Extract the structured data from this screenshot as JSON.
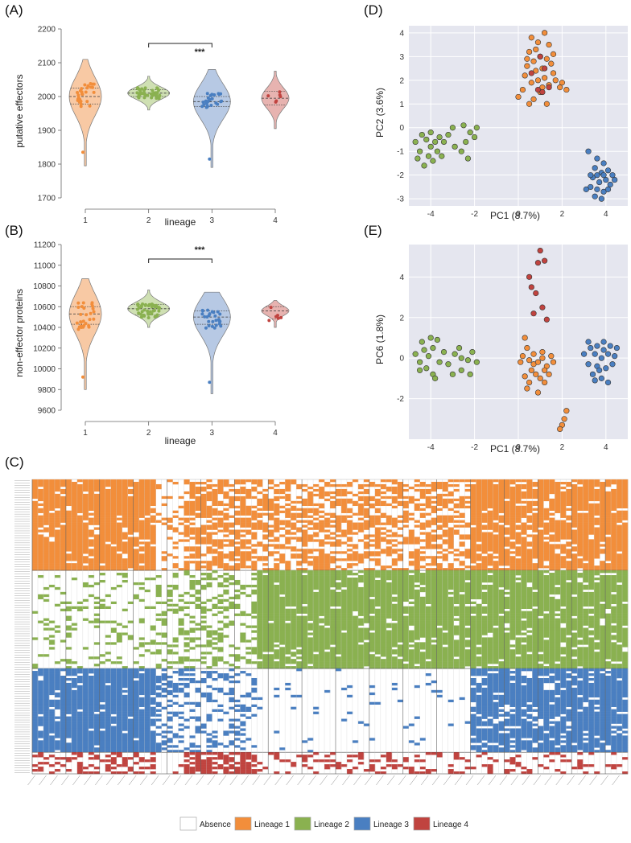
{
  "panels": {
    "A": {
      "label": "(A)",
      "ylabel": "putative effectors",
      "xlabel": "lineage",
      "significance": "***"
    },
    "B": {
      "label": "(B)",
      "ylabel": "non-effector proteins",
      "xlabel": "lineage",
      "significance": "***"
    },
    "C": {
      "label": "(C)"
    },
    "D": {
      "label": "(D)",
      "xlabel": "PC1 (8.7%)",
      "ylabel": "PC2 (3.6%)"
    },
    "E": {
      "label": "(E)",
      "xlabel": "PC1 (8.7%)",
      "ylabel": "PC6 (1.8%)"
    }
  },
  "legend": [
    {
      "label": "Absence",
      "color": "#ffffff"
    },
    {
      "label": "Lineage 1",
      "color": "#f28e3b"
    },
    {
      "label": "Lineage 2",
      "color": "#8ab150"
    },
    {
      "label": "Lineage 3",
      "color": "#4a7fc1"
    },
    {
      "label": "Lineage 4",
      "color": "#c0433f"
    }
  ],
  "colors": {
    "lineage1": "#f28e3b",
    "lineage2": "#8ab150",
    "lineage3": "#4a7fc1",
    "lineage4": "#c0433f",
    "violin1": "#f8c9a4",
    "violin2": "#cfe0b3",
    "violin3": "#b7c9e4",
    "violin4": "#e7b3b0",
    "pca_bg": "#e5e6ef"
  },
  "chart_data": [
    {
      "id": "A",
      "type": "violin",
      "title": "",
      "xlabel": "lineage",
      "ylabel": "putative effectors",
      "categories": [
        "1",
        "2",
        "3",
        "4"
      ],
      "ylim": [
        1700,
        2200
      ],
      "yticks": [
        "1700",
        "1800",
        "1900",
        "2000",
        "2100",
        "2200"
      ],
      "medians": [
        2000,
        2010,
        1985,
        1995
      ],
      "q1": [
        1978,
        2000,
        1970,
        1975
      ],
      "q3": [
        2025,
        2020,
        2000,
        2015
      ],
      "ranges": [
        [
          1795,
          2110
        ],
        [
          1960,
          2060
        ],
        [
          1790,
          2080
        ],
        [
          1905,
          2075
        ]
      ],
      "outliers": [
        [
          1835
        ],
        [],
        [
          1815
        ],
        []
      ],
      "significance": {
        "between": [
          "2",
          "3"
        ],
        "label": "***"
      }
    },
    {
      "id": "B",
      "type": "violin",
      "title": "",
      "xlabel": "lineage",
      "ylabel": "non-effector proteins",
      "categories": [
        "1",
        "2",
        "3",
        "4"
      ],
      "ylim": [
        9600,
        11200
      ],
      "yticks": [
        "9600",
        "9800",
        "10000",
        "10200",
        "10400",
        "10600",
        "10800",
        "11000",
        "11200"
      ],
      "medians": [
        10530,
        10580,
        10500,
        10560
      ],
      "q1": [
        10430,
        10520,
        10430,
        10480
      ],
      "q3": [
        10600,
        10620,
        10560,
        10600
      ],
      "ranges": [
        [
          9800,
          10870
        ],
        [
          10400,
          10760
        ],
        [
          9760,
          10740
        ],
        [
          10400,
          10660
        ]
      ],
      "outliers": [
        [
          9920
        ],
        [],
        [
          9870
        ],
        []
      ],
      "significance": {
        "between": [
          "2",
          "3"
        ],
        "label": "***"
      }
    },
    {
      "id": "D",
      "type": "scatter",
      "xlabel": "PC1 (8.7%)",
      "ylabel": "PC2 (3.6%)",
      "xlim": [
        -5,
        5
      ],
      "ylim": [
        -3.3,
        4.3
      ],
      "xticks": [
        "-4",
        "-2",
        "0",
        "2",
        "4"
      ],
      "yticks": [
        "-3",
        "-2",
        "-1",
        "0",
        "1",
        "2",
        "3",
        "4"
      ],
      "series": [
        {
          "name": "Lineage 1",
          "points": [
            [
              0.6,
              3.8
            ],
            [
              1.2,
              4.0
            ],
            [
              0.9,
              3.6
            ],
            [
              1.4,
              3.5
            ],
            [
              0.5,
              3.2
            ],
            [
              1.0,
              3.0
            ],
            [
              1.3,
              2.9
            ],
            [
              0.7,
              2.8
            ],
            [
              1.5,
              2.7
            ],
            [
              0.4,
              2.6
            ],
            [
              1.1,
              2.5
            ],
            [
              0.8,
              2.4
            ],
            [
              1.6,
              2.3
            ],
            [
              0.3,
              2.2
            ],
            [
              1.2,
              2.1
            ],
            [
              0.9,
              2.0
            ],
            [
              1.7,
              2.0
            ],
            [
              0.6,
              1.9
            ],
            [
              1.4,
              1.8
            ],
            [
              2.0,
              1.9
            ],
            [
              0.2,
              1.6
            ],
            [
              1.0,
              1.5
            ],
            [
              0.7,
              1.2
            ],
            [
              1.3,
              1.0
            ],
            [
              0.5,
              1.0
            ],
            [
              0.0,
              1.3
            ],
            [
              1.9,
              1.7
            ],
            [
              2.2,
              1.6
            ],
            [
              1.1,
              1.7
            ],
            [
              0.8,
              3.3
            ],
            [
              1.6,
              3.1
            ],
            [
              0.4,
              2.9
            ]
          ]
        },
        {
          "name": "Lineage 2",
          "points": [
            [
              -4.7,
              -0.6
            ],
            [
              -4.4,
              -0.3
            ],
            [
              -4.2,
              -0.5
            ],
            [
              -4.0,
              -0.8
            ],
            [
              -3.8,
              -0.6
            ],
            [
              -4.5,
              -1.0
            ],
            [
              -4.1,
              -1.2
            ],
            [
              -3.9,
              -1.4
            ],
            [
              -4.3,
              -1.6
            ],
            [
              -3.7,
              -1.0
            ],
            [
              -3.6,
              -0.4
            ],
            [
              -4.6,
              -1.3
            ],
            [
              -3.4,
              -0.6
            ],
            [
              -3.2,
              -0.3
            ],
            [
              -3.0,
              0.0
            ],
            [
              -2.9,
              -0.8
            ],
            [
              -2.6,
              -1.0
            ],
            [
              -2.4,
              -0.6
            ],
            [
              -2.2,
              -0.2
            ],
            [
              -2.0,
              -0.4
            ],
            [
              -2.5,
              0.1
            ],
            [
              -1.9,
              0.0
            ],
            [
              -2.3,
              -1.3
            ],
            [
              -4.0,
              -0.2
            ],
            [
              -3.5,
              -1.2
            ]
          ]
        },
        {
          "name": "Lineage 3",
          "points": [
            [
              3.2,
              -1.0
            ],
            [
              3.6,
              -1.3
            ],
            [
              3.9,
              -1.5
            ],
            [
              4.1,
              -1.8
            ],
            [
              3.5,
              -1.7
            ],
            [
              3.8,
              -1.9
            ],
            [
              4.3,
              -2.0
            ],
            [
              3.4,
              -2.1
            ],
            [
              3.7,
              -2.3
            ],
            [
              4.0,
              -2.2
            ],
            [
              3.3,
              -2.5
            ],
            [
              3.6,
              -2.6
            ],
            [
              4.2,
              -2.4
            ],
            [
              3.9,
              -2.7
            ],
            [
              3.5,
              -2.9
            ],
            [
              3.8,
              -3.0
            ],
            [
              4.4,
              -2.2
            ],
            [
              3.1,
              -2.6
            ],
            [
              3.6,
              -2.0
            ],
            [
              4.1,
              -2.6
            ],
            [
              3.3,
              -2.0
            ],
            [
              3.9,
              -2.0
            ]
          ]
        },
        {
          "name": "Lineage 4",
          "points": [
            [
              1.0,
              3.0
            ],
            [
              0.9,
              1.6
            ],
            [
              1.2,
              2.5
            ],
            [
              0.6,
              2.3
            ],
            [
              1.4,
              1.7
            ],
            [
              1.1,
              1.5
            ]
          ]
        }
      ]
    },
    {
      "id": "E",
      "type": "scatter",
      "xlabel": "PC1 (8.7%)",
      "ylabel": "PC6 (1.8%)",
      "xlim": [
        -5,
        5
      ],
      "ylim": [
        -4.0,
        5.6
      ],
      "xticks": [
        "-4",
        "-2",
        "0",
        "2",
        "4"
      ],
      "yticks": [
        "-2",
        "0",
        "2",
        "4"
      ],
      "series": [
        {
          "name": "Lineage 1",
          "points": [
            [
              0.3,
              1.0
            ],
            [
              0.4,
              0.5
            ],
            [
              0.2,
              0.1
            ],
            [
              0.5,
              -0.1
            ],
            [
              0.7,
              -0.3
            ],
            [
              0.9,
              -0.2
            ],
            [
              1.1,
              0.0
            ],
            [
              1.3,
              -0.4
            ],
            [
              0.6,
              -0.6
            ],
            [
              0.8,
              -0.8
            ],
            [
              1.0,
              -1.0
            ],
            [
              1.2,
              -1.2
            ],
            [
              0.4,
              -1.5
            ],
            [
              0.9,
              -1.7
            ],
            [
              1.4,
              -0.8
            ],
            [
              1.6,
              -0.2
            ],
            [
              0.1,
              -0.2
            ],
            [
              0.3,
              -0.9
            ],
            [
              1.1,
              0.3
            ],
            [
              2.2,
              -2.6
            ],
            [
              2.1,
              -3.0
            ],
            [
              2.0,
              -3.3
            ],
            [
              1.9,
              -3.5
            ],
            [
              0.7,
              0.2
            ],
            [
              1.5,
              0.1
            ],
            [
              0.5,
              -1.2
            ],
            [
              1.2,
              -0.6
            ]
          ]
        },
        {
          "name": "Lineage 2",
          "points": [
            [
              -4.7,
              0.2
            ],
            [
              -4.5,
              -0.2
            ],
            [
              -4.3,
              0.4
            ],
            [
              -4.1,
              0.1
            ],
            [
              -3.9,
              0.5
            ],
            [
              -3.7,
              0.9
            ],
            [
              -4.0,
              1.0
            ],
            [
              -4.4,
              0.8
            ],
            [
              -4.2,
              -0.5
            ],
            [
              -3.9,
              -0.8
            ],
            [
              -3.6,
              -0.2
            ],
            [
              -3.4,
              0.3
            ],
            [
              -3.2,
              -0.3
            ],
            [
              -2.9,
              0.2
            ],
            [
              -2.6,
              0.0
            ],
            [
              -2.3,
              -0.1
            ],
            [
              -2.1,
              0.3
            ],
            [
              -1.9,
              -0.2
            ],
            [
              -2.2,
              -0.8
            ],
            [
              -2.6,
              -0.6
            ],
            [
              -3.0,
              -0.8
            ],
            [
              -4.5,
              -0.6
            ],
            [
              -2.7,
              0.5
            ],
            [
              -3.8,
              -1.0
            ]
          ]
        },
        {
          "name": "Lineage 3",
          "points": [
            [
              3.0,
              0.2
            ],
            [
              3.3,
              0.5
            ],
            [
              3.6,
              0.6
            ],
            [
              3.9,
              0.8
            ],
            [
              4.2,
              0.6
            ],
            [
              3.5,
              0.2
            ],
            [
              3.8,
              0.0
            ],
            [
              4.1,
              0.2
            ],
            [
              4.4,
              0.1
            ],
            [
              3.2,
              -0.3
            ],
            [
              3.6,
              -0.4
            ],
            [
              4.0,
              -0.5
            ],
            [
              4.3,
              -0.3
            ],
            [
              3.4,
              -0.8
            ],
            [
              3.8,
              -1.0
            ],
            [
              4.1,
              -1.2
            ],
            [
              3.7,
              -0.6
            ],
            [
              3.9,
              0.4
            ],
            [
              3.2,
              0.8
            ],
            [
              4.5,
              0.5
            ],
            [
              3.5,
              -1.1
            ]
          ]
        },
        {
          "name": "Lineage 4",
          "points": [
            [
              1.0,
              5.3
            ],
            [
              0.9,
              4.7
            ],
            [
              1.2,
              4.8
            ],
            [
              0.5,
              4.0
            ],
            [
              0.6,
              3.5
            ],
            [
              0.8,
              3.2
            ],
            [
              1.1,
              2.5
            ],
            [
              1.3,
              1.9
            ],
            [
              0.7,
              2.2
            ]
          ]
        }
      ]
    },
    {
      "id": "C",
      "type": "heatmap",
      "legend": [
        "Absence",
        "Lineage 1",
        "Lineage 2",
        "Lineage 3",
        "Lineage 4"
      ],
      "row_groups": [
        {
          "name": "Lineage 1",
          "rows": 38
        },
        {
          "name": "Lineage 2",
          "rows": 41
        },
        {
          "name": "Lineage 3",
          "rows": 35
        },
        {
          "name": "Lineage 4",
          "rows": 9
        }
      ],
      "columns": 106
    }
  ]
}
